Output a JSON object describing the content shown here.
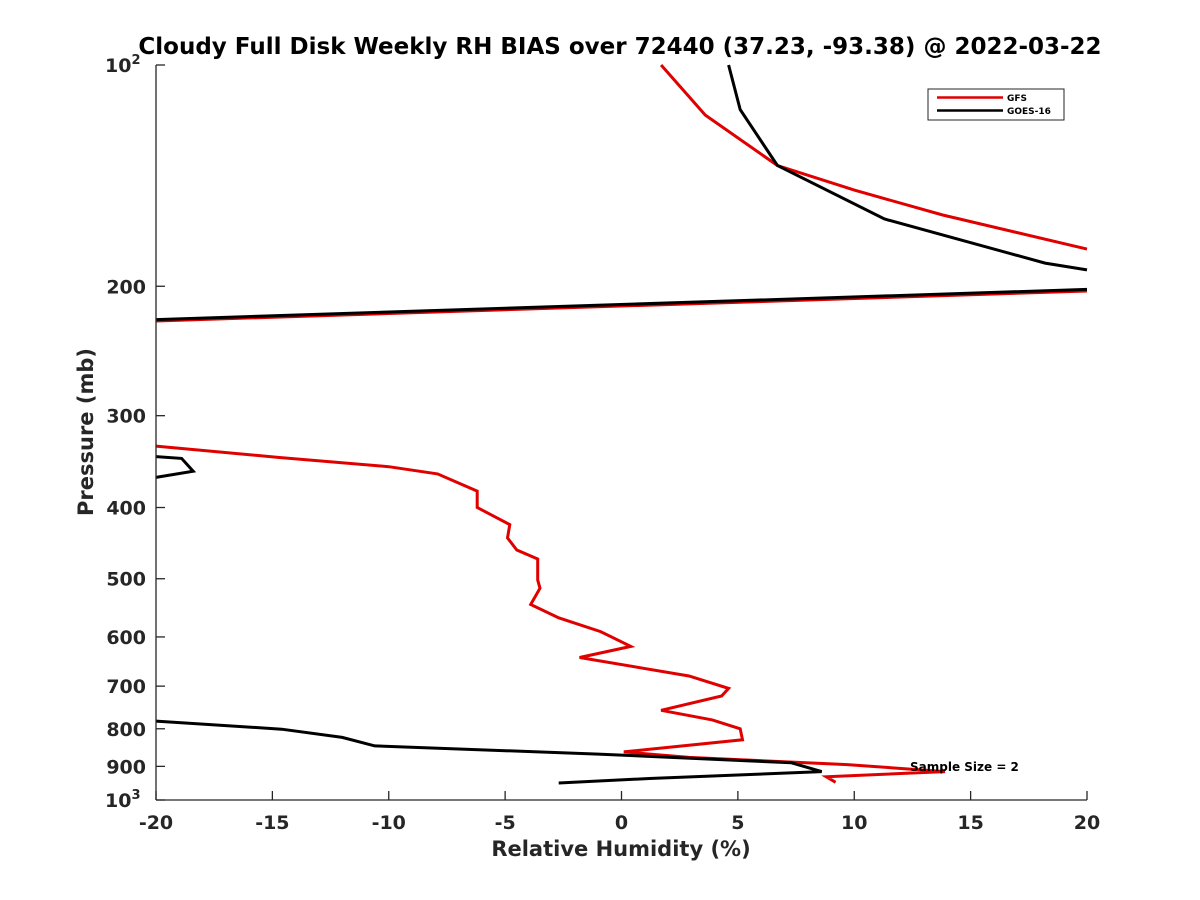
{
  "chart_data": {
    "type": "line",
    "title": "Cloudy Full Disk Weekly RH BIAS over 72440 (37.23, -93.38) @ 2022-03-22",
    "xlabel": "Relative Humidity (%)",
    "ylabel": "Pressure (mb)",
    "xlim": [
      -20,
      20
    ],
    "ylim": [
      100,
      1000
    ],
    "y_scale": "log",
    "y_reversed": true,
    "grid": false,
    "legend_position": "top-right",
    "x_ticks": [
      -20,
      -15,
      -10,
      -5,
      0,
      5,
      10,
      15,
      20
    ],
    "x_tick_labels": [
      "-20",
      "-15",
      "-10",
      "-5",
      "0",
      "5",
      "10",
      "15",
      "20"
    ],
    "y_ticks": [
      {
        "value": 100,
        "label": "10",
        "sup": "2"
      },
      {
        "value": 200,
        "label": "200",
        "sup": ""
      },
      {
        "value": 300,
        "label": "300",
        "sup": ""
      },
      {
        "value": 400,
        "label": "400",
        "sup": ""
      },
      {
        "value": 500,
        "label": "500",
        "sup": ""
      },
      {
        "value": 600,
        "label": "600",
        "sup": ""
      },
      {
        "value": 700,
        "label": "700",
        "sup": ""
      },
      {
        "value": 800,
        "label": "800",
        "sup": ""
      },
      {
        "value": 900,
        "label": "900",
        "sup": ""
      },
      {
        "value": 1000,
        "label": "10",
        "sup": "3"
      }
    ],
    "annotation": "Sample Size = 2",
    "series": [
      {
        "name": "GFS",
        "color": "#e00000",
        "segments": [
          [
            [
              1.7,
              100
            ],
            [
              3.6,
              117
            ],
            [
              6.7,
              137
            ],
            [
              10.0,
              148
            ],
            [
              13.8,
              160
            ],
            [
              20.0,
              178
            ]
          ],
          [
            [
              20.0,
              203
            ],
            [
              -20.0,
              223
            ]
          ],
          [
            [
              -20.0,
              330
            ],
            [
              -14.7,
              342
            ],
            [
              -10.0,
              352
            ],
            [
              -7.9,
              360
            ],
            [
              -6.2,
              380
            ],
            [
              -6.2,
              400
            ],
            [
              -4.8,
              422
            ],
            [
              -4.9,
              440
            ],
            [
              -4.5,
              457
            ],
            [
              -3.6,
              470
            ],
            [
              -3.6,
              502
            ],
            [
              -3.5,
              515
            ],
            [
              -3.9,
              542
            ],
            [
              -2.7,
              565
            ],
            [
              -0.9,
              590
            ],
            [
              0.4,
              618
            ],
            [
              -1.8,
              640
            ],
            [
              2.9,
              678
            ],
            [
              4.6,
              705
            ],
            [
              4.3,
              722
            ],
            [
              1.7,
              755
            ],
            [
              3.9,
              778
            ],
            [
              5.1,
              800
            ],
            [
              5.2,
              828
            ],
            [
              0.1,
              860
            ],
            [
              2.9,
              875
            ],
            [
              9.7,
              895
            ],
            [
              13.9,
              915
            ],
            [
              8.8,
              930
            ],
            [
              9.2,
              946
            ]
          ]
        ]
      },
      {
        "name": "GOES-16",
        "color": "#000000",
        "segments": [
          [
            [
              4.6,
              100
            ],
            [
              5.1,
              115
            ],
            [
              6.7,
              137
            ],
            [
              11.3,
              162
            ],
            [
              18.2,
              186
            ],
            [
              20.0,
              190
            ]
          ],
          [
            [
              20.0,
              202
            ],
            [
              -20.0,
              222
            ]
          ],
          [
            [
              -20.0,
              341
            ],
            [
              -18.9,
              343
            ],
            [
              -18.4,
              357
            ],
            [
              -20.0,
              364
            ]
          ],
          [
            [
              -20.0,
              781
            ],
            [
              -14.6,
              801
            ],
            [
              -12.0,
              822
            ],
            [
              -10.6,
              844
            ],
            [
              -1.0,
              866
            ],
            [
              7.3,
              890
            ],
            [
              8.6,
              915
            ],
            [
              1.2,
              935
            ],
            [
              -2.7,
              948
            ]
          ]
        ]
      }
    ]
  }
}
